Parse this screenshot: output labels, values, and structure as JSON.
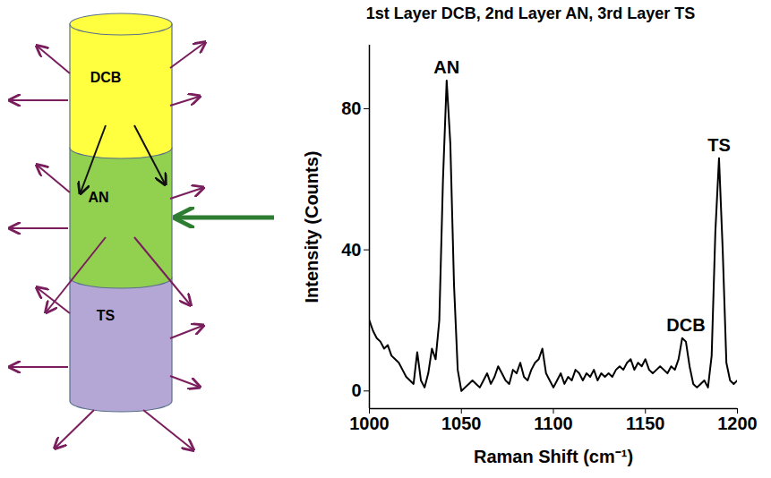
{
  "diagram": {
    "layers": [
      "DCB",
      "AN",
      "TS"
    ]
  },
  "chart_data": {
    "type": "line",
    "title": "1st Layer DCB, 2nd Layer AN, 3rd Layer TS",
    "x_label": "Raman Shift (cm⁻¹)",
    "y_label": "Intensity (Counts)",
    "color": "#000000",
    "xlim": [
      1000,
      1200
    ],
    "xticks": [
      1000,
      1050,
      1100,
      1150,
      1200
    ],
    "ylim": [
      -5,
      98
    ],
    "yticks": [
      0,
      40,
      80
    ],
    "x": [
      1000,
      1002,
      1004,
      1006,
      1008,
      1010,
      1012,
      1014,
      1016,
      1018,
      1020,
      1022,
      1024,
      1026,
      1028,
      1030,
      1032,
      1034,
      1036,
      1038,
      1040,
      1042,
      1044,
      1046,
      1048,
      1050,
      1052,
      1054,
      1056,
      1058,
      1060,
      1062,
      1064,
      1066,
      1068,
      1070,
      1072,
      1074,
      1076,
      1078,
      1080,
      1082,
      1084,
      1086,
      1088,
      1090,
      1092,
      1094,
      1096,
      1098,
      1100,
      1102,
      1104,
      1106,
      1108,
      1110,
      1112,
      1114,
      1116,
      1118,
      1120,
      1122,
      1124,
      1126,
      1128,
      1130,
      1132,
      1134,
      1136,
      1138,
      1140,
      1142,
      1144,
      1146,
      1148,
      1150,
      1152,
      1154,
      1156,
      1158,
      1160,
      1162,
      1164,
      1166,
      1168,
      1170,
      1172,
      1174,
      1176,
      1178,
      1180,
      1182,
      1184,
      1186,
      1188,
      1190,
      1192,
      1194,
      1196,
      1198,
      1200
    ],
    "values": [
      20,
      17,
      15,
      14,
      12,
      13,
      10,
      9,
      8,
      6,
      4,
      3,
      2,
      11,
      3,
      1,
      5,
      12,
      9,
      20,
      60,
      88,
      70,
      30,
      6,
      0,
      1,
      2,
      3,
      2,
      1,
      3,
      5,
      2,
      4,
      7,
      5,
      3,
      2,
      6,
      5,
      8,
      4,
      3,
      6,
      8,
      9,
      12,
      5,
      3,
      1,
      3,
      5,
      2,
      4,
      3,
      6,
      5,
      3,
      5,
      4,
      6,
      3,
      5,
      4,
      5,
      4,
      6,
      7,
      6,
      8,
      9,
      6,
      8,
      7,
      9,
      6,
      5,
      6,
      7,
      6,
      5,
      7,
      6,
      9,
      15,
      14,
      7,
      2,
      1,
      2,
      3,
      1,
      10,
      45,
      66,
      40,
      8,
      3,
      2,
      3
    ],
    "annotations": [
      {
        "text": "AN",
        "x": 1042,
        "y": 89
      },
      {
        "text": "DCB",
        "x": 1172,
        "y": 16
      },
      {
        "text": "TS",
        "x": 1190,
        "y": 67
      }
    ]
  }
}
